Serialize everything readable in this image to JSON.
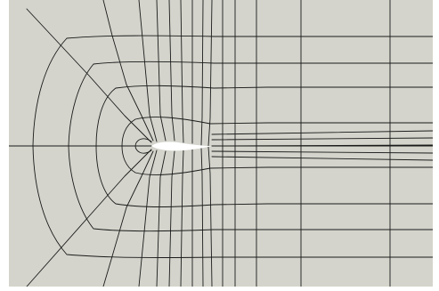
{
  "mesh": {
    "background_color": "#d4d4cc",
    "line_color": "#1a1a1a",
    "airfoil_color": "#ffffff",
    "frame_color": "#ffffff"
  }
}
